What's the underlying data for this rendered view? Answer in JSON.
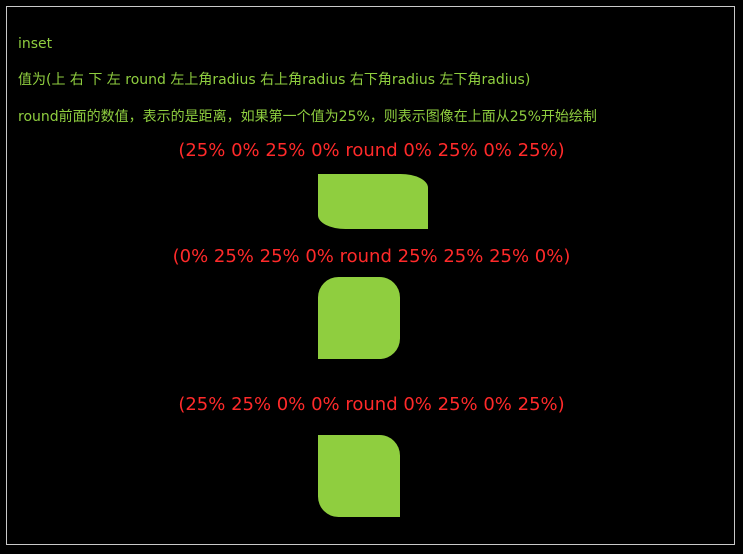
{
  "notes": {
    "line1": "inset",
    "line2": "值为(上 右 下 左 round 左上角radius 右上角radius 右下角radius 左下角radius)",
    "line3": "round前面的数值，表示的是距离，如果第一个值为25%，则表示图像在上面从25%开始绘制"
  },
  "examples": [
    {
      "caption": "(25% 0% 25% 0% round 0% 25% 0% 25%)"
    },
    {
      "caption": "(0% 25% 25% 0% round 25% 25% 25% 0%)"
    },
    {
      "caption": "(25% 25% 0% 0% round 0% 25% 0% 25%)"
    }
  ],
  "colors": {
    "background": "#000000",
    "note_text": "#8fce3f",
    "caption_text": "#ff2a2a",
    "shape_fill": "#8fce3f",
    "frame_border": "#c9c9c9"
  }
}
